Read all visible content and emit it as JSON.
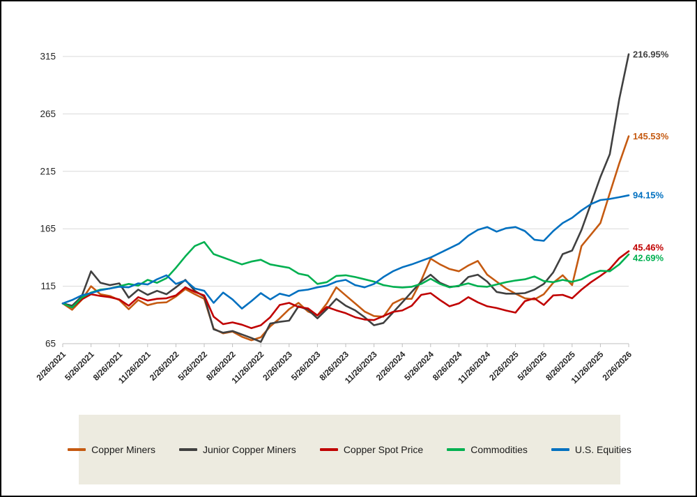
{
  "chart_data": {
    "type": "line",
    "x_tick_labels": [
      "2/26/2021",
      "5/26/2021",
      "8/26/2021",
      "11/26/2021",
      "2/26/2022",
      "5/26/2022",
      "8/26/2022",
      "11/26/2022",
      "2/26/2023",
      "5/26/2023",
      "8/26/2023",
      "11/26/2023",
      "2/26/2024",
      "5/26/2024",
      "8/26/2024",
      "11/26/2024",
      "2/26/2025",
      "5/26/2025",
      "8/26/2025",
      "11/26/2025",
      "2/26/2026"
    ],
    "points_per_tick": 3,
    "x_start_label": "2/26/2021",
    "x_end_label": "2/26/2026",
    "y_ticks": [
      65,
      115,
      165,
      215,
      265,
      315
    ],
    "ylim": [
      65,
      315
    ],
    "grid": "horizontal",
    "legend_position": "bottom",
    "series": [
      {
        "name": "Copper Miners",
        "color": "#C55A11",
        "end_label": "145.53%",
        "values": [
          100,
          94.5,
          103,
          115,
          108,
          106.5,
          103,
          95,
          103,
          98.5,
          100.5,
          101,
          106,
          112.5,
          108,
          104,
          78,
          74,
          75.5,
          71,
          68,
          70.5,
          80,
          87,
          95,
          100.5,
          93,
          89.5,
          100,
          114,
          107,
          100,
          93,
          89,
          88.5,
          100,
          104,
          104,
          120,
          139,
          134,
          130,
          128,
          133,
          137,
          125,
          119,
          113,
          108.5,
          104.5,
          103.5,
          108,
          118,
          124.5,
          116,
          150,
          160,
          170,
          196,
          222,
          245.53
        ]
      },
      {
        "name": "Junior Copper Miners",
        "color": "#404040",
        "end_label": "216.95%",
        "values": [
          100,
          98,
          106,
          128,
          118,
          116,
          117.5,
          105,
          112,
          107.5,
          111,
          108,
          114,
          120.5,
          111,
          106,
          77.5,
          74.5,
          76,
          73,
          70,
          66.5,
          82.5,
          84,
          85,
          97.5,
          94.5,
          87,
          95,
          104,
          98,
          94,
          88,
          81,
          83,
          92,
          101,
          110,
          119,
          125,
          118,
          114.5,
          115,
          123,
          125,
          119,
          110,
          108.5,
          108.5,
          109,
          112,
          117,
          127,
          143,
          146,
          164,
          187,
          210,
          230,
          278,
          316.95
        ]
      },
      {
        "name": "Copper Spot Price",
        "color": "#C00000",
        "end_label": "45.46%",
        "values": [
          100,
          96.5,
          103.5,
          108,
          106.5,
          105.5,
          103.5,
          98,
          105.5,
          102.5,
          104,
          104.5,
          107,
          114,
          110,
          107,
          88.5,
          82,
          83.5,
          81.5,
          78.5,
          81,
          88,
          98.7,
          100.5,
          96.9,
          95.7,
          89.6,
          96.9,
          94,
          91.5,
          88,
          86,
          85.5,
          89,
          92.6,
          93.9,
          98,
          107.5,
          109,
          103,
          97.5,
          100,
          105.5,
          101,
          97.5,
          96,
          93.8,
          92,
          102,
          104.5,
          98.7,
          107,
          107.5,
          104.5,
          112,
          118.5,
          124,
          130,
          139.4,
          145.46
        ]
      },
      {
        "name": "Commodities",
        "color": "#00B050",
        "end_label": "42.69%",
        "values": [
          100,
          96.5,
          105,
          109.5,
          112,
          113,
          115,
          117,
          115.5,
          120.5,
          118,
          122,
          131,
          141,
          150,
          153.5,
          143,
          140,
          137,
          134,
          136.5,
          138,
          134,
          132.5,
          131,
          126,
          124.3,
          117,
          118.5,
          124,
          124.5,
          123,
          121,
          119,
          116,
          114.5,
          113.9,
          114.5,
          117,
          121.5,
          117,
          114,
          115.5,
          117.5,
          115,
          114.5,
          116.5,
          118.5,
          120,
          121,
          123.5,
          119.5,
          118.5,
          120.5,
          118.8,
          121,
          125.5,
          128.5,
          128,
          134,
          142.69
        ]
      },
      {
        "name": "U.S. Equities",
        "color": "#0070C0",
        "end_label": "94.15%",
        "values": [
          100,
          103,
          107,
          109,
          111.5,
          113,
          114.5,
          114,
          117.5,
          116.5,
          121,
          124.5,
          117,
          120,
          113,
          111,
          100.5,
          109.5,
          103.5,
          95.5,
          102,
          109,
          103.5,
          108.5,
          106.5,
          111,
          112,
          114,
          115.5,
          119,
          120.5,
          116,
          114,
          117,
          123,
          128,
          131.5,
          134,
          137,
          140,
          144,
          148,
          152,
          159,
          164,
          166.5,
          162.5,
          165.5,
          166.5,
          163,
          155.5,
          154.5,
          163,
          170,
          174.5,
          181,
          186.5,
          190,
          191,
          192.5,
          194.15
        ]
      }
    ]
  },
  "colors": {
    "gridline": "#D9D9D9",
    "axis_line": "#BFBFBF",
    "tick_label": "#262626",
    "legend_bg": "#EDEBE0",
    "frame_border": "#000000"
  }
}
